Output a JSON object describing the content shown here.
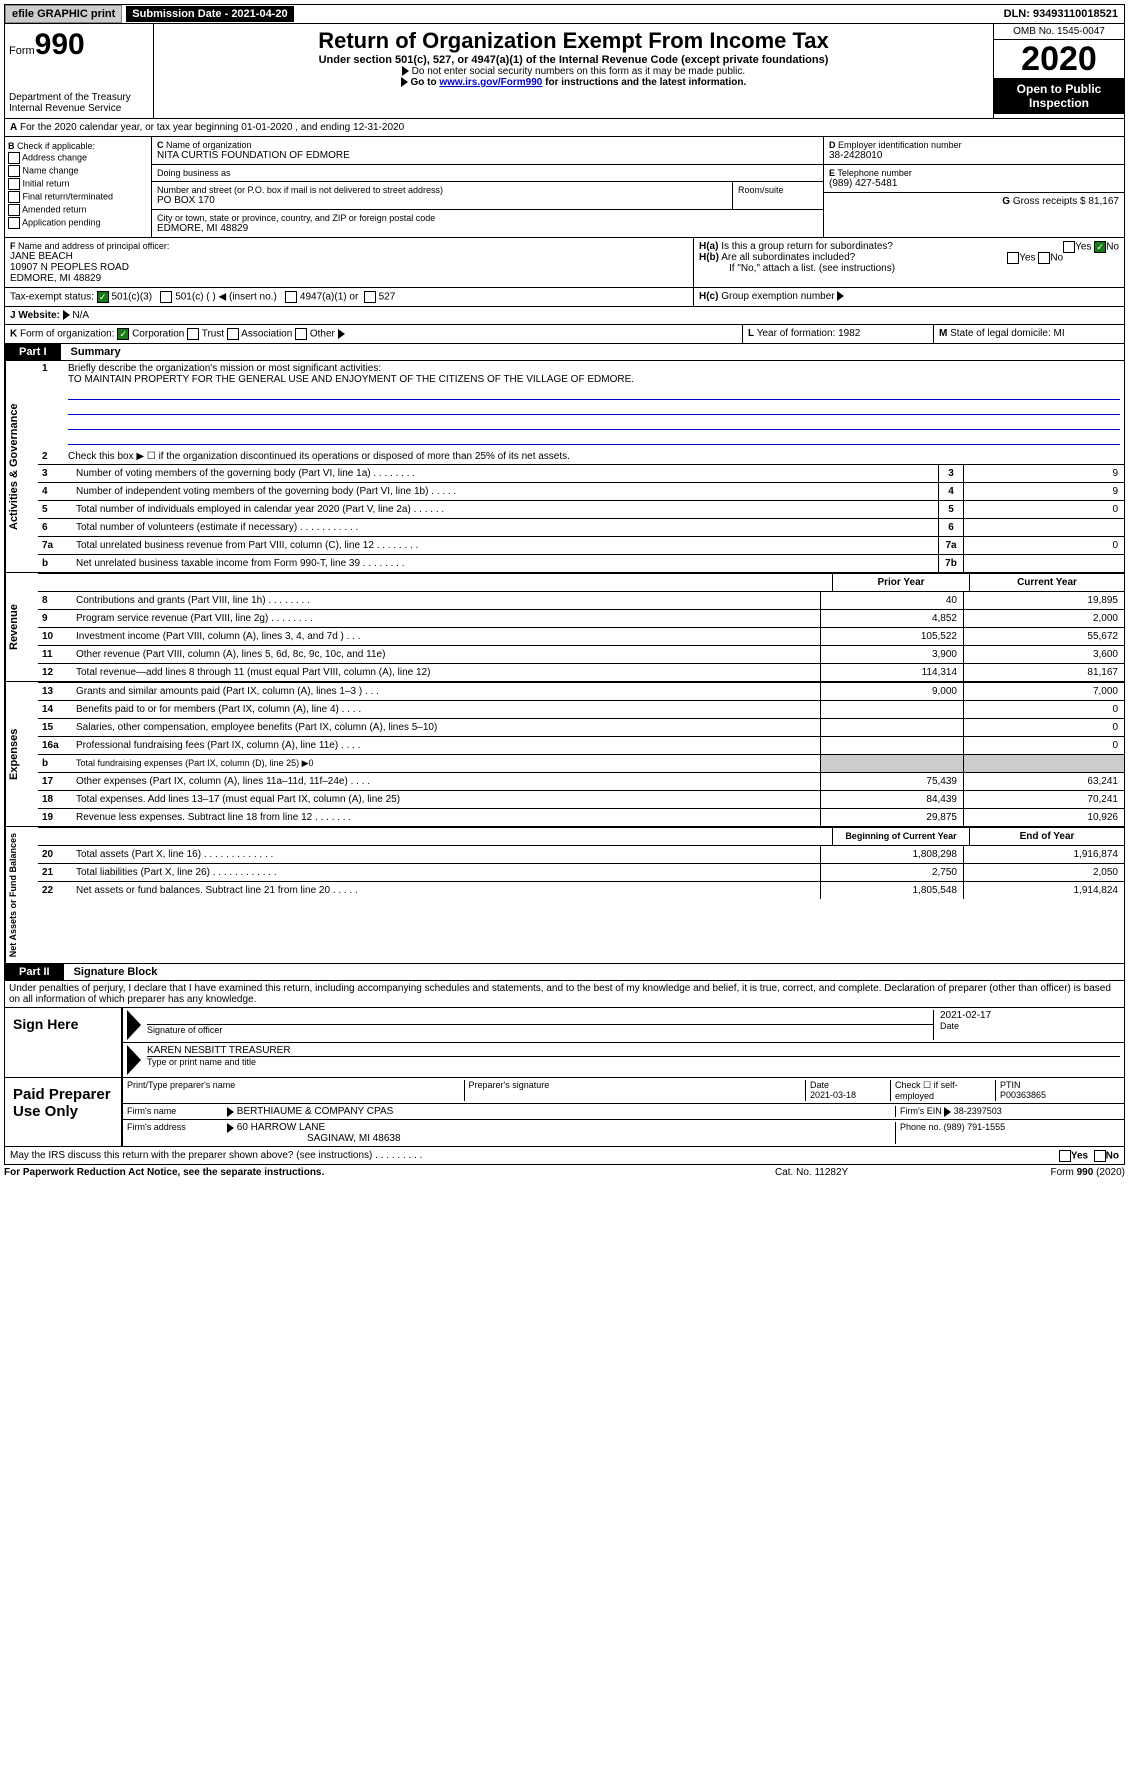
{
  "topbar": {
    "efile": "efile GRAPHIC print",
    "submission_label": "Submission Date - 2021-04-20",
    "dln": "DLN: 93493110018521"
  },
  "header": {
    "form_prefix": "Form",
    "form_number": "990",
    "dept": "Department of the Treasury\nInternal Revenue Service",
    "title": "Return of Organization Exempt From Income Tax",
    "subtitle": "Under section 501(c), 527, or 4947(a)(1) of the Internal Revenue Code (except private foundations)",
    "note1": "Do not enter social security numbers on this form as it may be made public.",
    "note2_pre": "Go to ",
    "note2_link": "www.irs.gov/Form990",
    "note2_post": " for instructions and the latest information.",
    "omb": "OMB No. 1545-0047",
    "year": "2020",
    "open": "Open to Public Inspection"
  },
  "A": {
    "text": "For the 2020 calendar year, or tax year beginning 01-01-2020     , and ending 12-31-2020"
  },
  "B": {
    "label": "Check if applicable:",
    "items": [
      "Address change",
      "Name change",
      "Initial return",
      "Final return/terminated",
      "Amended return",
      "Application pending"
    ]
  },
  "C": {
    "name_label": "Name of organization",
    "name": "NITA CURTIS FOUNDATION OF EDMORE",
    "dba_label": "Doing business as",
    "addr_label": "Number and street (or P.O. box if mail is not delivered to street address)",
    "room_label": "Room/suite",
    "addr": "PO BOX 170",
    "city_label": "City or town, state or province, country, and ZIP or foreign postal code",
    "city": "EDMORE, MI  48829"
  },
  "D": {
    "label": "Employer identification number",
    "val": "38-2428010"
  },
  "E": {
    "label": "Telephone number",
    "val": "(989) 427-5481"
  },
  "G": {
    "label": "Gross receipts $",
    "val": "81,167"
  },
  "F": {
    "label": "Name and address of principal officer:",
    "name": "JANE BEACH",
    "addr1": "10907 N PEOPLES ROAD",
    "addr2": "EDMORE, MI  48829"
  },
  "H": {
    "a": "Is this a group return for subordinates?",
    "b": "Are all subordinates included?",
    "b_note": "If \"No,\" attach a list. (see instructions)",
    "c": "Group exemption number"
  },
  "tax_status_label": "Tax-exempt status:",
  "tax_opts": [
    "501(c)(3)",
    "501(c) (  ) ◀ (insert no.)",
    "4947(a)(1) or",
    "527"
  ],
  "J": {
    "label": "Website:",
    "val": "N/A"
  },
  "K": {
    "label": "Form of organization:",
    "opts": [
      "Corporation",
      "Trust",
      "Association",
      "Other"
    ]
  },
  "L": {
    "label": "Year of formation:",
    "val": "1982"
  },
  "M": {
    "label": "State of legal domicile:",
    "val": "MI"
  },
  "part1": {
    "label": "Part I",
    "title": "Summary",
    "vtab1": "Activities & Governance",
    "vtab2": "Revenue",
    "vtab3": "Expenses",
    "vtab4": "Net Assets or Fund Balances",
    "line1_label": "Briefly describe the organization's mission or most significant activities:",
    "line1_val": "TO MAINTAIN PROPERTY FOR THE GENERAL USE AND ENJOYMENT OF THE CITIZENS OF THE VILLAGE OF EDMORE.",
    "line2": "Check this box ▶ ☐  if the organization discontinued its operations or disposed of more than 25% of its net assets.",
    "lines_a": [
      {
        "n": "3",
        "t": "Number of voting members of the governing body (Part VI, line 1a)  .    .    .    .    .    .    .    .",
        "box": "3",
        "v": "9"
      },
      {
        "n": "4",
        "t": "Number of independent voting members of the governing body (Part VI, line 1b)   .    .    .    .    .",
        "box": "4",
        "v": "9"
      },
      {
        "n": "5",
        "t": "Total number of individuals employed in calendar year 2020 (Part V, line 2a)   .    .    .    .    .    .",
        "box": "5",
        "v": "0"
      },
      {
        "n": "6",
        "t": "Total number of volunteers (estimate if necessary)   .    .    .    .    .    .    .    .    .    .    .",
        "box": "6",
        "v": ""
      },
      {
        "n": "7a",
        "t": "Total unrelated business revenue from Part VIII, column (C), line 12   .    .    .    .    .    .    .    .",
        "box": "7a",
        "v": "0"
      },
      {
        "n": "b",
        "t": "Net unrelated business taxable income from Form 990-T, line 39   .    .    .    .    .    .    .    .",
        "box": "7b",
        "v": ""
      }
    ],
    "prior_label": "Prior Year",
    "current_label": "Current Year",
    "lines_rev": [
      {
        "n": "8",
        "t": "Contributions and grants (Part VIII, line 1h)   .    .    .    .    .    .    .    .",
        "p": "40",
        "c": "19,895"
      },
      {
        "n": "9",
        "t": "Program service revenue (Part VIII, line 2g)   .    .    .    .    .    .    .    .",
        "p": "4,852",
        "c": "2,000"
      },
      {
        "n": "10",
        "t": "Investment income (Part VIII, column (A), lines 3, 4, and 7d )   .    .    .",
        "p": "105,522",
        "c": "55,672"
      },
      {
        "n": "11",
        "t": "Other revenue (Part VIII, column (A), lines 5, 6d, 8c, 9c, 10c, and 11e)",
        "p": "3,900",
        "c": "3,600"
      },
      {
        "n": "12",
        "t": "Total revenue—add lines 8 through 11 (must equal Part VIII, column (A), line 12)",
        "p": "114,314",
        "c": "81,167"
      }
    ],
    "lines_exp": [
      {
        "n": "13",
        "t": "Grants and similar amounts paid (Part IX, column (A), lines 1–3 )   .    .    .",
        "p": "9,000",
        "c": "7,000"
      },
      {
        "n": "14",
        "t": "Benefits paid to or for members (Part IX, column (A), line 4)   .    .    .    .",
        "p": "",
        "c": "0"
      },
      {
        "n": "15",
        "t": "Salaries, other compensation, employee benefits (Part IX, column (A), lines 5–10)",
        "p": "",
        "c": "0"
      },
      {
        "n": "16a",
        "t": "Professional fundraising fees (Part IX, column (A), line 11e)   .    .    .    .",
        "p": "",
        "c": "0"
      }
    ],
    "line16b": "Total fundraising expenses (Part IX, column (D), line 25) ▶0",
    "lines_exp2": [
      {
        "n": "17",
        "t": "Other expenses (Part IX, column (A), lines 11a–11d, 11f–24e)   .    .    .    .",
        "p": "75,439",
        "c": "63,241"
      },
      {
        "n": "18",
        "t": "Total expenses. Add lines 13–17 (must equal Part IX, column (A), line 25)",
        "p": "84,439",
        "c": "70,241"
      },
      {
        "n": "19",
        "t": "Revenue less expenses. Subtract line 18 from line 12   .    .    .    .    .    .    .",
        "p": "29,875",
        "c": "10,926"
      }
    ],
    "begin_label": "Beginning of Current Year",
    "end_label": "End of Year",
    "lines_net": [
      {
        "n": "20",
        "t": "Total assets (Part X, line 16)   .    .    .    .    .    .    .    .    .    .    .    .    .",
        "p": "1,808,298",
        "c": "1,916,874"
      },
      {
        "n": "21",
        "t": "Total liabilities (Part X, line 26)   .    .    .    .    .    .    .    .    .    .    .    .",
        "p": "2,750",
        "c": "2,050"
      },
      {
        "n": "22",
        "t": "Net assets or fund balances. Subtract line 21 from line 20   .    .    .    .    .",
        "p": "1,805,548",
        "c": "1,914,824"
      }
    ]
  },
  "part2": {
    "label": "Part II",
    "title": "Signature Block",
    "perjury": "Under penalties of perjury, I declare that I have examined this return, including accompanying schedules and statements, and to the best of my knowledge and belief, it is true, correct, and complete. Declaration of preparer (other than officer) is based on all information of which preparer has any knowledge."
  },
  "sign": {
    "label": "Sign Here",
    "sig_officer": "Signature of officer",
    "date": "2021-02-17",
    "date_label": "Date",
    "name": "KAREN NESBITT TREASURER",
    "name_label": "Type or print name and title"
  },
  "paid": {
    "label": "Paid Preparer Use Only",
    "col1": "Print/Type preparer's name",
    "col2": "Preparer's signature",
    "col3": "Date",
    "col3_val": "2021-03-18",
    "col4": "Check ☐ if self-employed",
    "col5": "PTIN",
    "col5_val": "P00363865",
    "firm_name_label": "Firm's name",
    "firm_name": "BERTHIAUME & COMPANY CPAS",
    "firm_ein_label": "Firm's EIN",
    "firm_ein": "38-2397503",
    "firm_addr_label": "Firm's address",
    "firm_addr1": "60 HARROW LANE",
    "firm_addr2": "SAGINAW, MI  48638",
    "phone_label": "Phone no.",
    "phone": "(989) 791-1555"
  },
  "discuss": "May the IRS discuss this return with the preparer shown above? (see instructions)    .    .    .    .    .    .    .    .    .",
  "footer": {
    "l": "For Paperwork Reduction Act Notice, see the separate instructions.",
    "m": "Cat. No. 11282Y",
    "r": "Form 990 (2020)"
  }
}
